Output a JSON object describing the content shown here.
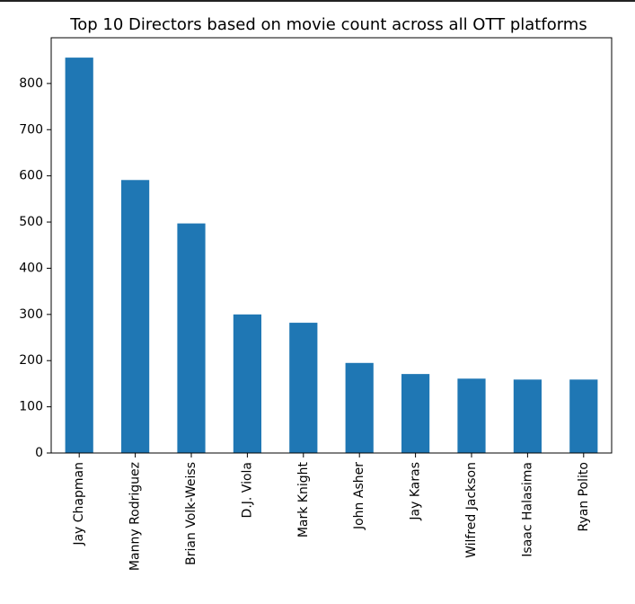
{
  "chart_data": {
    "type": "bar",
    "title": "Top 10 Directors based on movie count across all OTT platforms",
    "xlabel": "",
    "ylabel": "",
    "categories": [
      "Jay Chapman",
      "Manny Rodriguez",
      "Brian Volk-Weiss",
      "D.J. Viola",
      "Mark Knight",
      "John Asher",
      "Jay Karas",
      "Wilfred Jackson",
      "Isaac Halasima",
      "Ryan Polito"
    ],
    "values": [
      856,
      591,
      497,
      300,
      282,
      195,
      171,
      161,
      159,
      159
    ],
    "ylim": [
      0,
      899
    ],
    "yticks": [
      0,
      100,
      200,
      300,
      400,
      500,
      600,
      700,
      800
    ],
    "grid": false,
    "legend": "none",
    "bar_color": "#1f77b4"
  }
}
